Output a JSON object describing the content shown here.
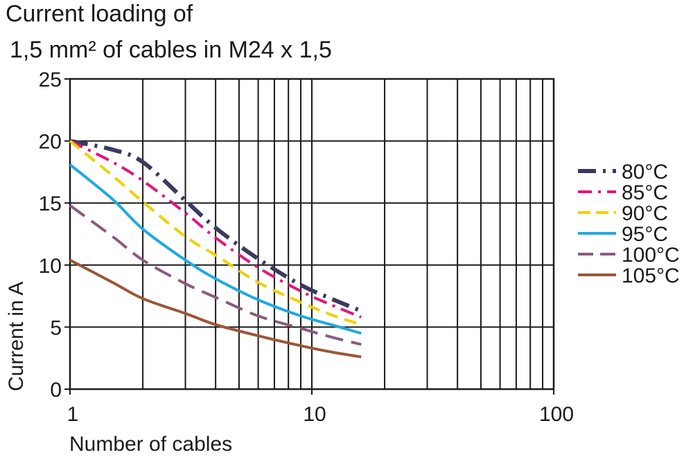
{
  "title_lines": [
    "Current loading of",
    "1,5 mm² of cables in M24 x 1,5"
  ],
  "chart_data": {
    "type": "line",
    "title": "Current loading of 1,5 mm² of cables in M24 x 1,5",
    "xlabel": "Number of cables",
    "ylabel": "Current in A",
    "xscale": "log",
    "xlim": [
      1,
      100
    ],
    "ylim": [
      0,
      25
    ],
    "xticks": [
      "1",
      "10",
      "100"
    ],
    "yticks": [
      "0",
      "5",
      "10",
      "15",
      "20",
      "25"
    ],
    "grid": true,
    "legend_position": "right",
    "series": [
      {
        "name": "80°C",
        "color": "#3a3a5e",
        "style": "dash-dot-heavy",
        "x": [
          1,
          1.5,
          2,
          3,
          4,
          6,
          9,
          12,
          16
        ],
        "y": [
          20,
          19.3,
          18.3,
          15.2,
          13.0,
          10.5,
          8.4,
          7.3,
          6.3
        ]
      },
      {
        "name": "85°C",
        "color": "#e0157f",
        "style": "dash-dot",
        "x": [
          1,
          1.5,
          2,
          3,
          4,
          6,
          9,
          12,
          16
        ],
        "y": [
          20,
          18.3,
          16.8,
          14.2,
          12.2,
          9.8,
          7.9,
          6.8,
          5.8
        ]
      },
      {
        "name": "90°C",
        "color": "#f0d000",
        "style": "dash",
        "x": [
          1,
          1.5,
          2,
          3,
          4,
          6,
          9,
          12,
          16
        ],
        "y": [
          20,
          17.2,
          15.1,
          12.3,
          10.8,
          8.6,
          7.0,
          6.0,
          5.2
        ]
      },
      {
        "name": "95°C",
        "color": "#1ea9e1",
        "style": "solid",
        "x": [
          1,
          1.5,
          2,
          3,
          4,
          6,
          9,
          12,
          16
        ],
        "y": [
          18.1,
          15.3,
          12.9,
          10.4,
          8.9,
          7.2,
          5.9,
          5.2,
          4.5
        ]
      },
      {
        "name": "100°C",
        "color": "#8a5a7e",
        "style": "long-dash",
        "x": [
          1,
          1.5,
          2,
          3,
          4,
          6,
          9,
          12,
          16
        ],
        "y": [
          14.8,
          12.3,
          10.4,
          8.5,
          7.4,
          5.9,
          4.9,
          4.2,
          3.6
        ]
      },
      {
        "name": "105°C",
        "color": "#9b5638",
        "style": "solid",
        "x": [
          1,
          1.5,
          2,
          3,
          4,
          6,
          9,
          12,
          16
        ],
        "y": [
          10.4,
          8.6,
          7.3,
          6.1,
          5.2,
          4.3,
          3.5,
          3.0,
          2.6
        ]
      }
    ]
  }
}
